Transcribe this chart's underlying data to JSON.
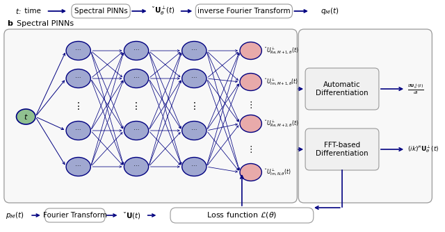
{
  "bg_color": "#ffffff",
  "node_color_blue": "#a0a8d0",
  "node_color_green": "#90c090",
  "node_color_pink": "#e8aaaa",
  "arrow_color": "#000080",
  "box_edge": "#999999",
  "box_fill": "#ffffff",
  "big_box_fill": "#ffffff",
  "right_big_box_fill": "#ffffff",
  "output_labels": [
    "$\\check{U}^\\perp_{Re,M+1,\\theta}(t)$",
    "$\\check{U}^\\perp_{Im,M+1,\\theta}(t)$",
    "$\\check{U}^\\perp_{Re,M+2,\\theta}(t)$",
    "$\\check{U}^\\perp_{Im,N,\\theta}(t)$"
  ]
}
